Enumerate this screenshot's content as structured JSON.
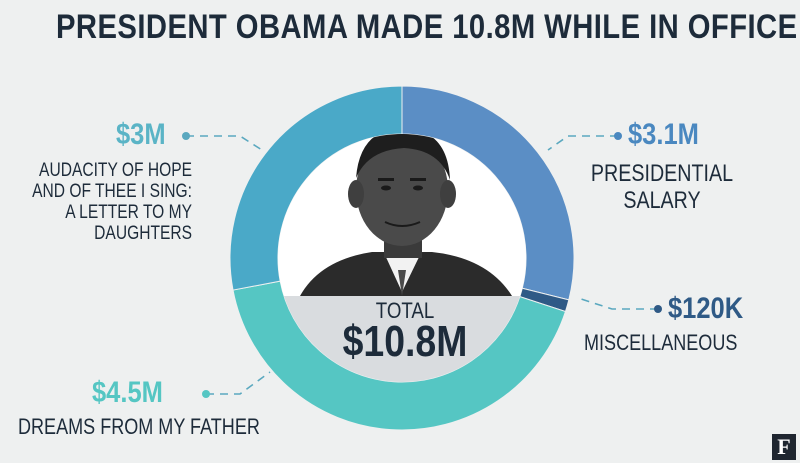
{
  "chart_data": {
    "type": "donut",
    "title": "PRESIDENT OBAMA MADE 10.8M WHILE IN OFFICE",
    "slices": [
      {
        "label": "PRESIDENTIAL SALARY",
        "value": 3.1,
        "value_label": "$3.1M",
        "color": "#5b8ec5"
      },
      {
        "label": "MISCELLANEOUS",
        "value": 0.12,
        "value_label": "$120K",
        "color": "#2f5a86"
      },
      {
        "label": "DREAMS FROM MY FATHER",
        "value": 4.5,
        "value_label": "$4.5M",
        "color": "#55c6c3"
      },
      {
        "label": "AUDACITY OF HOPE AND OF THEE I SING: A LETTER TO MY DAUGHTERS",
        "value": 3.0,
        "value_label": "$3M",
        "color": "#4aa9c8"
      }
    ],
    "total_label": "TOTAL",
    "total_value": "$10.8M",
    "units": "USD millions"
  },
  "callouts": {
    "salary": {
      "value": "$3.1M",
      "label": "PRESIDENTIAL\nSALARY"
    },
    "misc": {
      "value": "$120K",
      "label": "MISCELLANEOUS"
    },
    "dreams": {
      "value": "$4.5M",
      "label": "DREAMS FROM MY FATHER"
    },
    "audacity": {
      "value": "$3M",
      "label": "AUDACITY OF HOPE\nAND OF THEE I SING:\nA LETTER TO MY\nDAUGHTERS"
    }
  },
  "brand": {
    "letter": "F"
  },
  "colors": {
    "title": "#1d2b3a",
    "accent": "#5ab4c6",
    "salary_accent": "#4a88c0"
  },
  "icons": [
    "person-portrait-icon",
    "forbes-logo-icon"
  ]
}
